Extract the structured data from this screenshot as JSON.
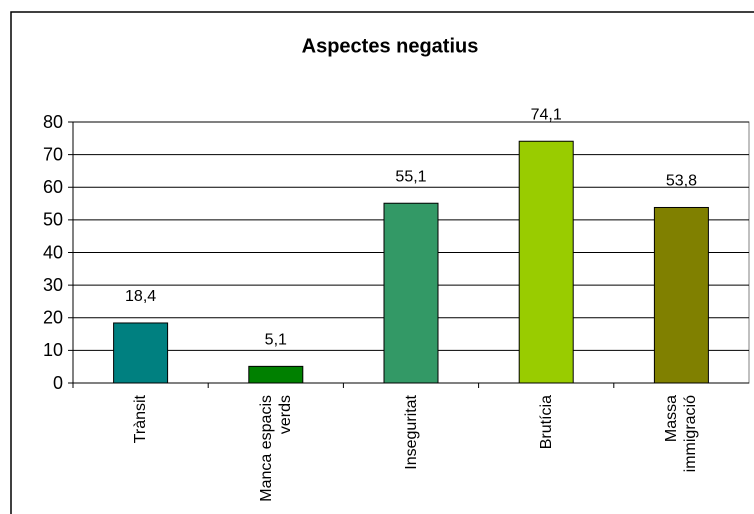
{
  "chart_data": {
    "type": "bar",
    "title": "Aspectes negatius",
    "categories": [
      "Trànsit",
      "Manca espacis verds",
      "Inseguritat",
      "Brutícia",
      "Massa immigració"
    ],
    "values": [
      18.4,
      5.1,
      55.1,
      74.1,
      53.8
    ],
    "value_labels": [
      "18,4",
      "5,1",
      "55,1",
      "74,1",
      "53,8"
    ],
    "colors": [
      "#008080",
      "#008000",
      "#339966",
      "#99cc00",
      "#808000"
    ],
    "ylim": [
      0,
      80
    ],
    "yticks": [
      0,
      10,
      20,
      30,
      40,
      50,
      60,
      70,
      80
    ],
    "grid": true
  }
}
